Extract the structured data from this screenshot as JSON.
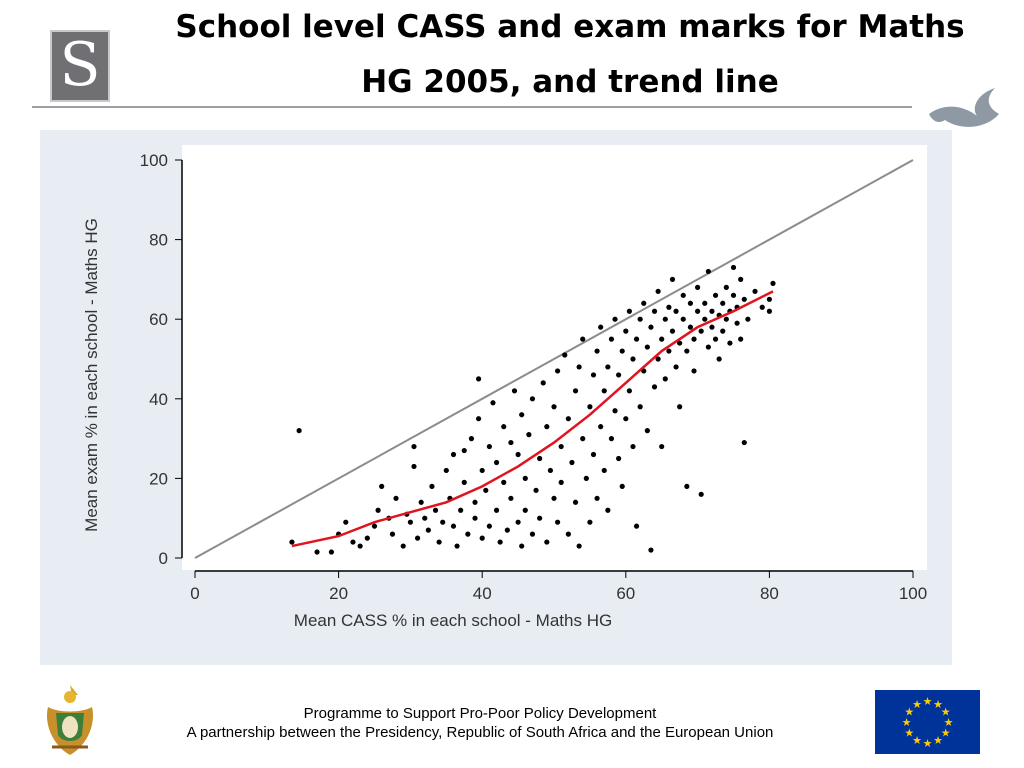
{
  "slide": {
    "title_line1": "School level CASS and exam marks for Maths",
    "title_line2": "HG 2005, and trend line",
    "footer_line1": "Programme to Support Pro-Poor Policy Development",
    "footer_line2": "A partnership between the Presidency, Republic of South Africa and the European Union",
    "logo_letter": "S"
  },
  "colors": {
    "chart_background": "#e7edf2",
    "plot_background": "#ffffff",
    "points": "#000000",
    "trend_line": "#e0141e",
    "diagonal_line": "#8c8c8c",
    "eu_blue": "#003399",
    "eu_star": "#ffcc00"
  },
  "chart_data": {
    "type": "scatter",
    "title": "",
    "xlabel": "Mean CASS % in each school - Maths HG",
    "ylabel": "Mean exam % in each school - Maths HG",
    "xlim": [
      0,
      100
    ],
    "ylim": [
      0,
      100
    ],
    "xticks": [
      0,
      20,
      40,
      60,
      80,
      100
    ],
    "yticks": [
      0,
      20,
      40,
      60,
      80,
      100
    ],
    "grid": false,
    "reference_line": {
      "name": "",
      "x": [
        0,
        100
      ],
      "y": [
        0,
        100
      ]
    },
    "trend_line": {
      "name": "",
      "x": [
        13.5,
        20,
        25,
        30,
        35,
        40,
        45,
        50,
        55,
        60,
        65,
        70,
        75,
        80.5
      ],
      "y": [
        3,
        5.5,
        9,
        11.5,
        14,
        18,
        23,
        29,
        36,
        44,
        52,
        58,
        62,
        67
      ]
    },
    "series": [
      {
        "name": "",
        "points": [
          [
            14.5,
            32
          ],
          [
            13.5,
            4
          ],
          [
            17,
            1.5
          ],
          [
            19,
            1.5
          ],
          [
            20,
            6
          ],
          [
            21,
            9
          ],
          [
            22,
            4
          ],
          [
            23,
            3
          ],
          [
            24,
            5
          ],
          [
            25,
            8
          ],
          [
            25.5,
            12
          ],
          [
            26,
            18
          ],
          [
            27,
            10
          ],
          [
            27.5,
            6
          ],
          [
            28,
            15
          ],
          [
            29,
            3
          ],
          [
            29.5,
            11
          ],
          [
            30,
            9
          ],
          [
            30.5,
            23
          ],
          [
            30.5,
            28
          ],
          [
            31,
            5
          ],
          [
            31.5,
            14
          ],
          [
            32,
            10
          ],
          [
            32.5,
            7
          ],
          [
            33,
            18
          ],
          [
            33.5,
            12
          ],
          [
            34,
            4
          ],
          [
            34.5,
            9
          ],
          [
            35,
            22
          ],
          [
            35.5,
            15
          ],
          [
            36,
            26
          ],
          [
            36,
            8
          ],
          [
            36.5,
            3
          ],
          [
            37,
            12
          ],
          [
            37.5,
            19
          ],
          [
            37.5,
            27
          ],
          [
            38,
            6
          ],
          [
            38.5,
            30
          ],
          [
            39,
            10
          ],
          [
            39,
            14
          ],
          [
            39.5,
            45
          ],
          [
            39.5,
            35
          ],
          [
            40,
            22
          ],
          [
            40,
            5
          ],
          [
            40.5,
            17
          ],
          [
            41,
            8
          ],
          [
            41,
            28
          ],
          [
            41.5,
            39
          ],
          [
            42,
            12
          ],
          [
            42,
            24
          ],
          [
            42.5,
            4
          ],
          [
            43,
            33
          ],
          [
            43,
            19
          ],
          [
            43.5,
            7
          ],
          [
            44,
            29
          ],
          [
            44,
            15
          ],
          [
            44.5,
            42
          ],
          [
            45,
            9
          ],
          [
            45,
            26
          ],
          [
            45.5,
            3
          ],
          [
            45.5,
            36
          ],
          [
            46,
            20
          ],
          [
            46,
            12
          ],
          [
            46.5,
            31
          ],
          [
            47,
            6
          ],
          [
            47,
            40
          ],
          [
            47.5,
            17
          ],
          [
            48,
            25
          ],
          [
            48,
            10
          ],
          [
            48.5,
            44
          ],
          [
            49,
            4
          ],
          [
            49,
            33
          ],
          [
            49.5,
            22
          ],
          [
            50,
            15
          ],
          [
            50,
            38
          ],
          [
            50.5,
            9
          ],
          [
            50.5,
            47
          ],
          [
            51,
            28
          ],
          [
            51,
            19
          ],
          [
            51.5,
            51
          ],
          [
            52,
            6
          ],
          [
            52,
            35
          ],
          [
            52.5,
            24
          ],
          [
            53,
            42
          ],
          [
            53,
            14
          ],
          [
            53.5,
            48
          ],
          [
            53.5,
            3
          ],
          [
            54,
            30
          ],
          [
            54,
            55
          ],
          [
            54.5,
            20
          ],
          [
            55,
            38
          ],
          [
            55,
            9
          ],
          [
            55.5,
            46
          ],
          [
            55.5,
            26
          ],
          [
            56,
            52
          ],
          [
            56,
            15
          ],
          [
            56.5,
            33
          ],
          [
            56.5,
            58
          ],
          [
            57,
            22
          ],
          [
            57,
            42
          ],
          [
            57.5,
            48
          ],
          [
            57.5,
            12
          ],
          [
            58,
            55
          ],
          [
            58,
            30
          ],
          [
            58.5,
            37
          ],
          [
            58.5,
            60
          ],
          [
            59,
            25
          ],
          [
            59,
            46
          ],
          [
            59.5,
            52
          ],
          [
            59.5,
            18
          ],
          [
            60,
            57
          ],
          [
            60,
            35
          ],
          [
            60.5,
            62
          ],
          [
            60.5,
            42
          ],
          [
            61,
            28
          ],
          [
            61,
            50
          ],
          [
            61.5,
            55
          ],
          [
            61.5,
            8
          ],
          [
            62,
            60
          ],
          [
            62,
            38
          ],
          [
            62.5,
            47
          ],
          [
            62.5,
            64
          ],
          [
            63,
            32
          ],
          [
            63,
            53
          ],
          [
            63.5,
            58
          ],
          [
            63.5,
            2
          ],
          [
            64,
            62
          ],
          [
            64,
            43
          ],
          [
            64.5,
            50
          ],
          [
            64.5,
            67
          ],
          [
            65,
            55
          ],
          [
            65,
            28
          ],
          [
            65.5,
            60
          ],
          [
            65.5,
            45
          ],
          [
            66,
            63
          ],
          [
            66,
            52
          ],
          [
            66.5,
            57
          ],
          [
            66.5,
            70
          ],
          [
            67,
            48
          ],
          [
            67,
            62
          ],
          [
            67.5,
            54
          ],
          [
            67.5,
            38
          ],
          [
            68,
            60
          ],
          [
            68,
            66
          ],
          [
            68.5,
            52
          ],
          [
            68.5,
            18
          ],
          [
            69,
            58
          ],
          [
            69,
            64
          ],
          [
            69.5,
            55
          ],
          [
            69.5,
            47
          ],
          [
            70,
            62
          ],
          [
            70,
            68
          ],
          [
            70.5,
            16
          ],
          [
            70.5,
            57
          ],
          [
            71,
            60
          ],
          [
            71,
            64
          ],
          [
            71.5,
            53
          ],
          [
            71.5,
            72
          ],
          [
            72,
            58
          ],
          [
            72,
            62
          ],
          [
            72.5,
            66
          ],
          [
            72.5,
            55
          ],
          [
            73,
            61
          ],
          [
            73,
            50
          ],
          [
            73.5,
            64
          ],
          [
            73.5,
            57
          ],
          [
            74,
            68
          ],
          [
            74,
            60
          ],
          [
            74.5,
            62
          ],
          [
            74.5,
            54
          ],
          [
            75,
            66
          ],
          [
            75,
            73
          ],
          [
            75.5,
            59
          ],
          [
            75.5,
            63
          ],
          [
            76,
            70
          ],
          [
            76,
            55
          ],
          [
            76.5,
            29
          ],
          [
            76.5,
            65
          ],
          [
            77,
            60
          ],
          [
            78,
            67
          ],
          [
            79,
            63
          ],
          [
            80,
            65
          ],
          [
            80.5,
            69
          ],
          [
            80,
            62
          ]
        ]
      }
    ]
  }
}
